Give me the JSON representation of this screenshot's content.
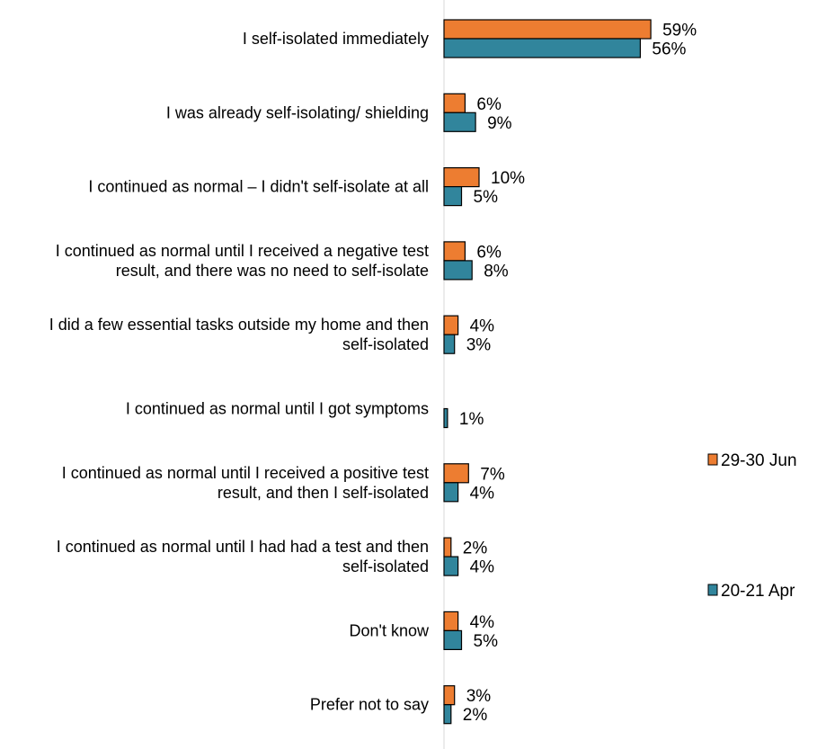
{
  "chart_data": {
    "type": "bar",
    "orientation": "horizontal",
    "categories": [
      [
        "I self-isolated immediately"
      ],
      [
        "I was already self-isolating/ shielding"
      ],
      [
        "I continued as normal – I didn't self-isolate at all"
      ],
      [
        "I continued as normal until I received a negative test",
        "result, and there was no need to self-isolate"
      ],
      [
        "I did a few essential tasks outside my home and then",
        "self-isolated"
      ],
      [
        "I continued as normal until I got symptoms"
      ],
      [
        "I continued as normal until I received a positive test",
        "result, and then I self-isolated"
      ],
      [
        "I continued as normal until I had had a test and then",
        "self-isolated"
      ],
      [
        "Don't know"
      ],
      [
        "Prefer not to say"
      ]
    ],
    "series": [
      {
        "name": "29-30 Jun",
        "color": "#ED7D31",
        "values": [
          59,
          6,
          10,
          6,
          4,
          null,
          7,
          2,
          4,
          3
        ],
        "labels": [
          "59%",
          "6%",
          "10%",
          "6%",
          "4%",
          "",
          "7%",
          "2%",
          "4%",
          "3%"
        ]
      },
      {
        "name": "20-21 Apr",
        "color": "#31859C",
        "values": [
          56,
          9,
          5,
          8,
          3,
          1,
          4,
          4,
          5,
          2
        ],
        "labels": [
          "56%",
          "9%",
          "5%",
          "8%",
          "3%",
          "1%",
          "4%",
          "4%",
          "5%",
          "2%"
        ]
      }
    ],
    "xlim": [
      0,
      100
    ],
    "grid": false,
    "legend_position": "right"
  }
}
